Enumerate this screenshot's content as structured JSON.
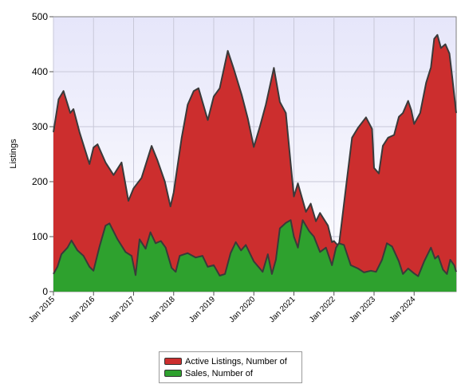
{
  "chart_data": {
    "type": "area",
    "ylabel": "Listings",
    "xlabel": "",
    "ylim": [
      0,
      500
    ],
    "yticks": [
      0,
      100,
      200,
      300,
      400,
      500
    ],
    "xticks": [
      {
        "label": "Jan 2015",
        "t": 2015.0
      },
      {
        "label": "Jan 2016",
        "t": 2016.0
      },
      {
        "label": "Jan 2017",
        "t": 2017.0
      },
      {
        "label": "Jan 2018",
        "t": 2018.0
      },
      {
        "label": "Jan 2019",
        "t": 2019.0
      },
      {
        "label": "Jan 2020",
        "t": 2020.0
      },
      {
        "label": "Jan 2021",
        "t": 2021.0
      },
      {
        "label": "Jan 2022",
        "t": 2022.0
      },
      {
        "label": "Jan 2023",
        "t": 2023.0
      },
      {
        "label": "Jan 2024",
        "t": 2024.0
      }
    ],
    "grid": true,
    "legend_position": "bottom",
    "series": [
      {
        "name": "Active Listings, Number of",
        "color": "#cc2e2e",
        "points": [
          [
            2015.0,
            290
          ],
          [
            2015.13,
            350
          ],
          [
            2015.25,
            365
          ],
          [
            2015.42,
            325
          ],
          [
            2015.5,
            332
          ],
          [
            2015.65,
            290
          ],
          [
            2015.9,
            232
          ],
          [
            2016.0,
            262
          ],
          [
            2016.1,
            268
          ],
          [
            2016.3,
            235
          ],
          [
            2016.5,
            212
          ],
          [
            2016.7,
            235
          ],
          [
            2016.87,
            165
          ],
          [
            2017.0,
            188
          ],
          [
            2017.2,
            207
          ],
          [
            2017.45,
            265
          ],
          [
            2017.6,
            238
          ],
          [
            2017.78,
            200
          ],
          [
            2017.92,
            155
          ],
          [
            2018.0,
            180
          ],
          [
            2018.2,
            280
          ],
          [
            2018.35,
            340
          ],
          [
            2018.5,
            365
          ],
          [
            2018.62,
            370
          ],
          [
            2018.85,
            312
          ],
          [
            2019.0,
            355
          ],
          [
            2019.15,
            370
          ],
          [
            2019.35,
            438
          ],
          [
            2019.5,
            405
          ],
          [
            2019.7,
            357
          ],
          [
            2019.85,
            315
          ],
          [
            2020.0,
            263
          ],
          [
            2020.15,
            300
          ],
          [
            2020.3,
            340
          ],
          [
            2020.5,
            407
          ],
          [
            2020.65,
            345
          ],
          [
            2020.8,
            325
          ],
          [
            2020.92,
            232
          ],
          [
            2021.0,
            173
          ],
          [
            2021.1,
            197
          ],
          [
            2021.3,
            145
          ],
          [
            2021.42,
            160
          ],
          [
            2021.55,
            128
          ],
          [
            2021.65,
            143
          ],
          [
            2021.85,
            120
          ],
          [
            2021.95,
            90
          ],
          [
            2022.0,
            92
          ],
          [
            2022.12,
            82
          ],
          [
            2022.3,
            190
          ],
          [
            2022.45,
            280
          ],
          [
            2022.6,
            298
          ],
          [
            2022.8,
            317
          ],
          [
            2022.95,
            296
          ],
          [
            2023.0,
            225
          ],
          [
            2023.12,
            215
          ],
          [
            2023.22,
            265
          ],
          [
            2023.35,
            280
          ],
          [
            2023.5,
            285
          ],
          [
            2023.62,
            318
          ],
          [
            2023.72,
            325
          ],
          [
            2023.85,
            347
          ],
          [
            2023.93,
            330
          ],
          [
            2024.0,
            305
          ],
          [
            2024.15,
            325
          ],
          [
            2024.3,
            380
          ],
          [
            2024.42,
            408
          ],
          [
            2024.5,
            460
          ],
          [
            2024.58,
            467
          ],
          [
            2024.67,
            443
          ],
          [
            2024.78,
            450
          ],
          [
            2024.88,
            433
          ],
          [
            2024.95,
            390
          ],
          [
            2025.05,
            325
          ]
        ]
      },
      {
        "name": "Sales, Number of",
        "color": "#2ea12e",
        "points": [
          [
            2015.0,
            32
          ],
          [
            2015.1,
            45
          ],
          [
            2015.2,
            68
          ],
          [
            2015.35,
            80
          ],
          [
            2015.45,
            93
          ],
          [
            2015.6,
            75
          ],
          [
            2015.75,
            65
          ],
          [
            2015.9,
            45
          ],
          [
            2016.0,
            38
          ],
          [
            2016.15,
            82
          ],
          [
            2016.3,
            120
          ],
          [
            2016.4,
            124
          ],
          [
            2016.6,
            95
          ],
          [
            2016.8,
            72
          ],
          [
            2016.95,
            65
          ],
          [
            2017.05,
            30
          ],
          [
            2017.15,
            95
          ],
          [
            2017.3,
            78
          ],
          [
            2017.42,
            108
          ],
          [
            2017.55,
            88
          ],
          [
            2017.68,
            92
          ],
          [
            2017.8,
            80
          ],
          [
            2017.95,
            43
          ],
          [
            2018.05,
            36
          ],
          [
            2018.15,
            65
          ],
          [
            2018.35,
            70
          ],
          [
            2018.55,
            62
          ],
          [
            2018.72,
            65
          ],
          [
            2018.85,
            45
          ],
          [
            2019.0,
            48
          ],
          [
            2019.15,
            29
          ],
          [
            2019.28,
            32
          ],
          [
            2019.42,
            70
          ],
          [
            2019.55,
            90
          ],
          [
            2019.68,
            75
          ],
          [
            2019.8,
            85
          ],
          [
            2020.0,
            55
          ],
          [
            2020.15,
            42
          ],
          [
            2020.22,
            36
          ],
          [
            2020.35,
            68
          ],
          [
            2020.45,
            32
          ],
          [
            2020.55,
            58
          ],
          [
            2020.65,
            115
          ],
          [
            2020.8,
            125
          ],
          [
            2020.92,
            130
          ],
          [
            2021.0,
            100
          ],
          [
            2021.1,
            80
          ],
          [
            2021.22,
            130
          ],
          [
            2021.38,
            110
          ],
          [
            2021.5,
            100
          ],
          [
            2021.65,
            72
          ],
          [
            2021.8,
            80
          ],
          [
            2021.95,
            48
          ],
          [
            2022.05,
            80
          ],
          [
            2022.12,
            88
          ],
          [
            2022.25,
            85
          ],
          [
            2022.42,
            48
          ],
          [
            2022.6,
            42
          ],
          [
            2022.75,
            35
          ],
          [
            2022.92,
            38
          ],
          [
            2023.05,
            36
          ],
          [
            2023.2,
            58
          ],
          [
            2023.32,
            88
          ],
          [
            2023.45,
            82
          ],
          [
            2023.62,
            55
          ],
          [
            2023.72,
            32
          ],
          [
            2023.85,
            42
          ],
          [
            2024.0,
            33
          ],
          [
            2024.1,
            28
          ],
          [
            2024.25,
            55
          ],
          [
            2024.42,
            80
          ],
          [
            2024.52,
            60
          ],
          [
            2024.6,
            65
          ],
          [
            2024.72,
            40
          ],
          [
            2024.82,
            32
          ],
          [
            2024.9,
            58
          ],
          [
            2025.0,
            48
          ],
          [
            2025.05,
            36
          ]
        ]
      }
    ]
  }
}
